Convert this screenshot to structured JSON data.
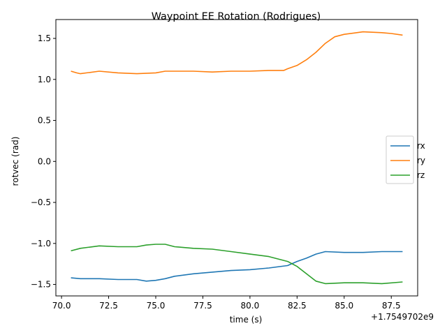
{
  "chart_data": {
    "type": "line",
    "title": "Waypoint EE Rotation (Rodrigues)",
    "xlabel": "time (s)",
    "ylabel": "rotvec (rad)",
    "x_offset_label": "+1.7549702e9",
    "xlim": [
      69.7,
      88.9
    ],
    "ylim": [
      -1.64,
      1.73
    ],
    "xticks": [
      70.0,
      72.5,
      75.0,
      77.5,
      80.0,
      82.5,
      85.0,
      87.5
    ],
    "xtick_labels": [
      "70.0",
      "72.5",
      "75.0",
      "77.5",
      "80.0",
      "82.5",
      "85.0",
      "87.5"
    ],
    "yticks": [
      -1.5,
      -1.0,
      -0.5,
      0.0,
      0.5,
      1.0,
      1.5
    ],
    "ytick_labels": [
      "−1.5",
      "−1.0",
      "−0.5",
      "0.0",
      "0.5",
      "1.0",
      "1.5"
    ],
    "grid": false,
    "legend_position": "center-right",
    "series": [
      {
        "name": "rx",
        "color": "#1f77b4",
        "x": [
          70.5,
          71.0,
          72.0,
          73.0,
          74.0,
          74.5,
          75.0,
          75.5,
          76.0,
          77.0,
          78.0,
          79.0,
          80.0,
          81.0,
          82.0,
          82.5,
          83.0,
          83.5,
          84.0,
          85.0,
          86.0,
          87.0,
          88.1
        ],
        "y": [
          -1.42,
          -1.43,
          -1.43,
          -1.44,
          -1.44,
          -1.46,
          -1.45,
          -1.43,
          -1.4,
          -1.37,
          -1.35,
          -1.33,
          -1.32,
          -1.3,
          -1.27,
          -1.22,
          -1.18,
          -1.13,
          -1.1,
          -1.11,
          -1.11,
          -1.1,
          -1.1
        ]
      },
      {
        "name": "ry",
        "color": "#ff7f0e",
        "x": [
          70.5,
          70.8,
          71.0,
          72.0,
          73.0,
          74.0,
          75.0,
          75.5,
          77.0,
          78.0,
          79.0,
          80.0,
          81.0,
          81.8,
          82.0,
          82.5,
          83.0,
          83.5,
          84.0,
          84.5,
          85.0,
          86.0,
          87.0,
          87.5,
          88.1
        ],
        "y": [
          1.1,
          1.08,
          1.07,
          1.1,
          1.08,
          1.07,
          1.08,
          1.1,
          1.1,
          1.09,
          1.1,
          1.1,
          1.11,
          1.11,
          1.13,
          1.17,
          1.24,
          1.33,
          1.44,
          1.52,
          1.55,
          1.58,
          1.57,
          1.56,
          1.54
        ]
      },
      {
        "name": "rz",
        "color": "#2ca02c",
        "x": [
          70.5,
          71.0,
          72.0,
          73.0,
          74.0,
          74.5,
          75.0,
          75.5,
          76.0,
          77.0,
          78.0,
          79.0,
          80.0,
          81.0,
          82.0,
          82.5,
          83.0,
          83.5,
          84.0,
          85.0,
          86.0,
          87.0,
          88.1
        ],
        "y": [
          -1.09,
          -1.06,
          -1.03,
          -1.04,
          -1.04,
          -1.02,
          -1.01,
          -1.01,
          -1.04,
          -1.06,
          -1.07,
          -1.1,
          -1.13,
          -1.16,
          -1.22,
          -1.28,
          -1.37,
          -1.46,
          -1.49,
          -1.48,
          -1.48,
          -1.49,
          -1.47
        ]
      }
    ]
  }
}
